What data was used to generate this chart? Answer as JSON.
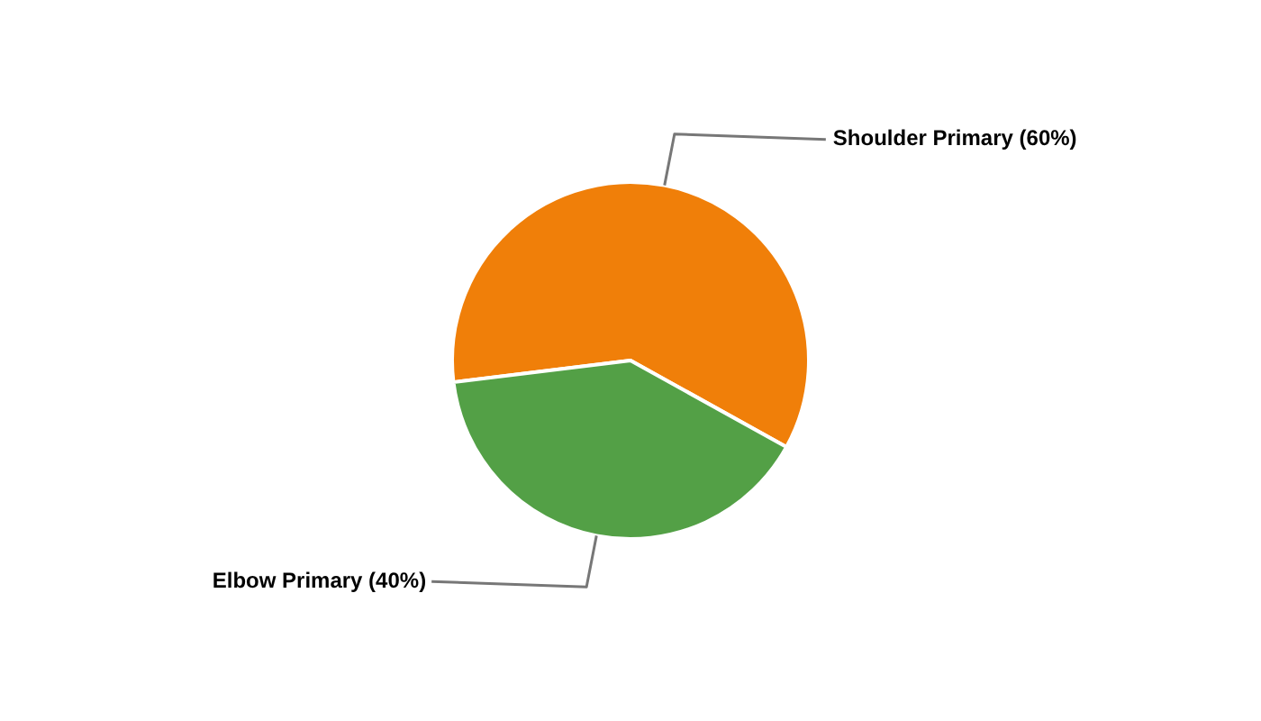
{
  "chart_data": {
    "type": "pie",
    "categories": [
      "Shoulder Primary",
      "Elbow Primary"
    ],
    "values": [
      60,
      40
    ],
    "colors": [
      "#f07f09",
      "#53a046"
    ],
    "value_labels": [
      "(60%)",
      "(40%)"
    ],
    "legend": false
  }
}
